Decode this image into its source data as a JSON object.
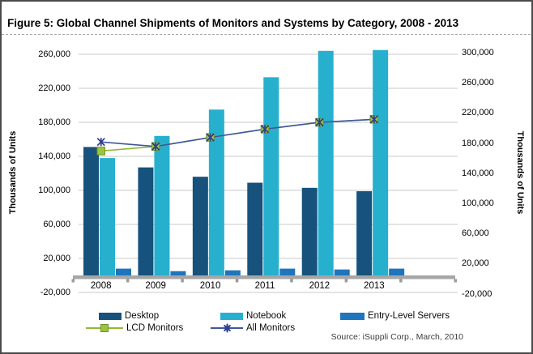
{
  "figure": {
    "title": "Figure 5: Global Channel Shipments of Monitors and Systems by Category, 2008 - 2013",
    "source": "Source: iSuppli Corp., March, 2010"
  },
  "axes": {
    "left_title": "Thousands of Units",
    "right_title": "Thousands of Units",
    "left_ticks": [
      "260,000",
      "220,000",
      "180,000",
      "140,000",
      "100,000",
      "60,000",
      "20,000",
      "-20,000"
    ],
    "right_ticks": [
      "300,000",
      "260,000",
      "220,000",
      "180,000",
      "140,000",
      "100,000",
      "60,000",
      "20,000",
      "-20,000"
    ]
  },
  "legend": [
    {
      "label": "Desktop",
      "type": "bar",
      "color": "#16527C"
    },
    {
      "label": "Notebook",
      "type": "bar",
      "color": "#27B0CE"
    },
    {
      "label": "Entry-Level Servers",
      "type": "bar",
      "color": "#1F75BC"
    },
    {
      "label": "LCD Monitors",
      "type": "line-square",
      "color": "#9DC43C",
      "line_color": "#8FBA35",
      "marker_border": "#6E9427"
    },
    {
      "label": "All Monitors",
      "type": "line-x",
      "color": "#3F57A0",
      "marker_color": "#2E3D8F"
    }
  ],
  "chart_data": {
    "type": "bar",
    "combo": "clustered bars on primary axis with line series on secondary axis",
    "title": "Figure 5: Global Channel Shipments of Monitors and Systems by Category, 2008 - 2013",
    "categories": [
      "2008",
      "2009",
      "2010",
      "2011",
      "2012",
      "2013"
    ],
    "bar_series": [
      {
        "name": "Desktop",
        "axis": "left",
        "color": "#16527C",
        "values": [
          151000,
          127000,
          116000,
          109000,
          103000,
          99000
        ]
      },
      {
        "name": "Notebook",
        "axis": "left",
        "color": "#27B0CE",
        "values": [
          138000,
          164000,
          195000,
          233000,
          264000,
          265000
        ]
      },
      {
        "name": "Entry-Level Servers",
        "axis": "left",
        "color": "#1F75BC",
        "values": [
          8000,
          5000,
          6000,
          8000,
          7000,
          8000
        ]
      }
    ],
    "line_series": [
      {
        "name": "LCD Monitors",
        "axis": "right",
        "color": "#8FBA35",
        "marker": "square",
        "marker_fill": "#9DC43C",
        "marker_border": "#6E9427",
        "values": [
          170000,
          176000,
          188000,
          199000,
          208000,
          212000
        ]
      },
      {
        "name": "All Monitors",
        "axis": "right",
        "color": "#3F57A0",
        "marker": "x",
        "marker_color": "#2E3D8F",
        "values": [
          182000,
          176000,
          188000,
          199000,
          208000,
          212000
        ]
      }
    ],
    "left_axis": {
      "title": "Thousands of Units",
      "min": -20000,
      "max": 260000,
      "step": 40000
    },
    "right_axis": {
      "title": "Thousands of Units",
      "min": -20000,
      "max": 300000,
      "step": 40000
    },
    "grid": true,
    "gridline_color": "#c9c9c9",
    "baseline_color": "#A6A6A6",
    "legend_position": "bottom",
    "xlabel": "",
    "ylabel": "Thousands of Units",
    "source": "Source: iSuppli Corp., March, 2010"
  }
}
